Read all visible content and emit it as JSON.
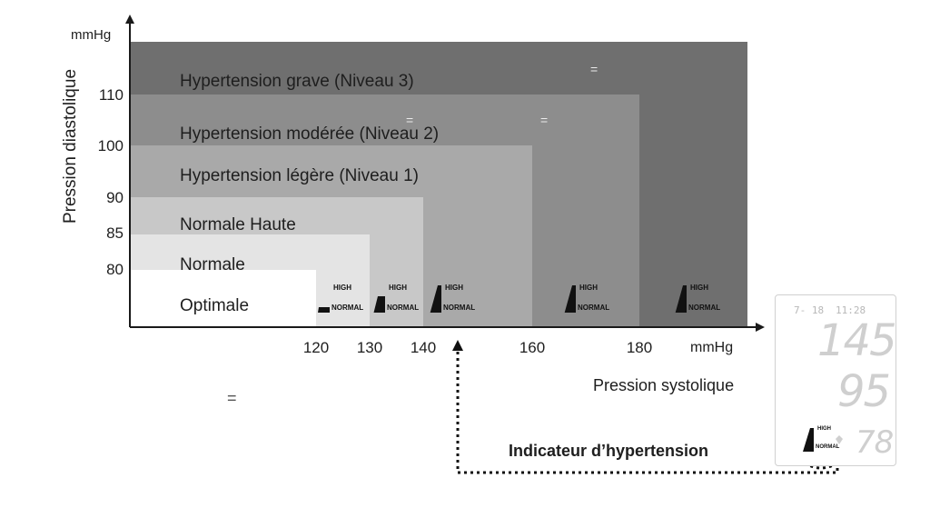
{
  "chart": {
    "y_unit": "mmHg",
    "x_unit": "mmHg",
    "y_axis_label": "Pression diastolique",
    "x_axis_label": "Pression systolique",
    "y_ticks": [
      "80",
      "85",
      "90",
      "100",
      "110"
    ],
    "x_ticks": [
      "120",
      "130",
      "140",
      "160",
      "180"
    ],
    "zones": [
      {
        "label": "Hypertension grave (Niveau 3)",
        "color": "#6f6f6f"
      },
      {
        "label": "Hypertension modérée (Niveau 2)",
        "color": "#8d8d8d"
      },
      {
        "label": "Hypertension légère (Niveau 1)",
        "color": "#a9a9a9"
      },
      {
        "label": "Normale Haute",
        "color": "#c8c8c8"
      },
      {
        "label": "Normale",
        "color": "#e4e4e4"
      },
      {
        "label": "Optimale",
        "color": "#ffffff"
      }
    ]
  },
  "badges": {
    "high": "HIGH",
    "normal": "NORMAL"
  },
  "indicator": {
    "caption": "Indicateur d’hypertension"
  },
  "monitor": {
    "date": "7- 18",
    "time": "11:28",
    "systolic": "145",
    "diastolic": "95",
    "pulse": "78"
  },
  "marks": {
    "equals": "="
  }
}
